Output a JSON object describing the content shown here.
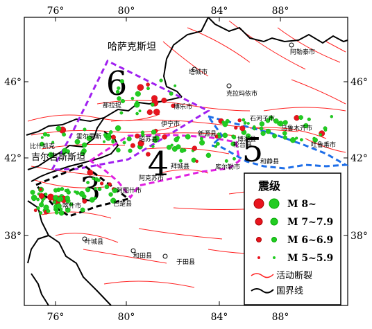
{
  "axes": {
    "top_ticks": [
      "76°",
      "80°",
      "84°",
      "88°"
    ],
    "bottom_ticks": [
      "76°",
      "80°",
      "84°",
      "88°"
    ],
    "left_ticks": [
      "46°",
      "42°",
      "38°"
    ],
    "right_ticks": [
      "46°",
      "42°",
      "38°"
    ]
  },
  "regions": {
    "kazakhstan": "哈萨克斯坦",
    "kyrgyzstan": "吉尔吉斯斯坦"
  },
  "zones": [
    {
      "id": "6",
      "color": "#a020f0"
    },
    {
      "id": "4",
      "color": "#e020e0"
    },
    {
      "id": "3",
      "color": "#000000"
    },
    {
      "id": "5",
      "color": "#1e6ee8"
    }
  ],
  "cities": [
    "阿勒泰市",
    "塔城市",
    "克拉玛依市",
    "博乐市",
    "石河子市",
    "乌鲁木齐市",
    "吐鲁番市",
    "伊宁市",
    "新源县",
    "昭苏县",
    "和静县",
    "库尔勒市",
    "轮台县",
    "博湖县",
    "拜城县",
    "阿克苏市",
    "比什凯克",
    "巴楚县",
    "阿图什市",
    "喀什市",
    "叶城县",
    "和田县",
    "于田县",
    "那拉提",
    "霍尔果斯"
  ],
  "legend": {
    "title": "震级",
    "items": [
      {
        "label": "M 8~"
      },
      {
        "label": "M 7~7.9"
      },
      {
        "label": "M 6~6.9"
      },
      {
        "label": "M 5~5.9"
      },
      {
        "label": "活动断裂"
      },
      {
        "label": "国界线"
      }
    ],
    "colors": {
      "red": "#e8141e",
      "green": "#22cc22",
      "fault": "#ff2020",
      "border": "#000000"
    }
  }
}
